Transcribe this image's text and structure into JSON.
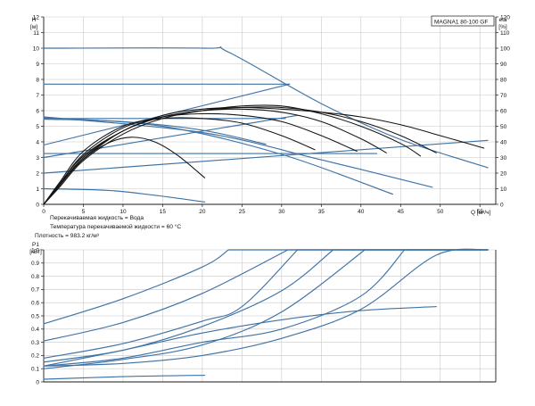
{
  "colors": {
    "blue": "#3f73a6",
    "black": "#151515",
    "grid": "#c8c8c8",
    "axis": "#1a1a1a"
  },
  "model": "MAGNA1 80-100 GF",
  "info_lines": [
    "Перекачиваемая жидкость = Вода",
    "Температура перекачиваемой жидкости = 60 °C",
    "Плотность = 983.2 кг/м³"
  ],
  "chart_data": [
    {
      "type": "line",
      "title": "MAGNA1 80-100 GF",
      "xlabel": "Q [м³/ч]",
      "ylabel": "H [м]",
      "ylabel2": "eta [%]",
      "xlim": [
        0,
        57
      ],
      "ylim": [
        0,
        12
      ],
      "y2lim": [
        0,
        120
      ],
      "xticks": [
        0,
        5,
        10,
        15,
        20,
        25,
        30,
        35,
        40,
        45,
        50,
        55
      ],
      "yticks": [
        0,
        1,
        2,
        3,
        4,
        5,
        6,
        7,
        8,
        9,
        10,
        11,
        12
      ],
      "y2ticks": [
        0,
        10,
        20,
        30,
        40,
        50,
        60,
        70,
        80,
        90,
        100,
        110,
        120
      ],
      "grid": true,
      "series": [
        {
          "color": "blue",
          "axis": "y",
          "x": [
            0,
            20.3,
            23.3,
            35,
            45,
            56
          ],
          "y": [
            10.0,
            10.0,
            9.75,
            6.45,
            4.15,
            2.35
          ]
        },
        {
          "color": "blue",
          "axis": "y",
          "x": [
            0,
            31
          ],
          "y": [
            7.7,
            7.7
          ]
        },
        {
          "color": "blue",
          "axis": "y",
          "x": [
            0,
            30.5
          ],
          "y": [
            5.5,
            5.5
          ]
        },
        {
          "color": "blue",
          "axis": "y",
          "x": [
            0,
            42
          ],
          "y": [
            3.25,
            3.25
          ]
        },
        {
          "color": "blue",
          "axis": "y",
          "x": [
            0,
            10,
            20,
            28
          ],
          "y": [
            5.45,
            5.3,
            4.75,
            3.85
          ]
        },
        {
          "color": "blue",
          "axis": "y",
          "x": [
            0,
            15,
            30,
            44
          ],
          "y": [
            5.55,
            5.0,
            3.2,
            0.65
          ]
        },
        {
          "color": "blue",
          "axis": "y",
          "x": [
            0,
            20,
            35,
            49
          ],
          "y": [
            5.6,
            4.6,
            2.85,
            1.1
          ]
        },
        {
          "color": "blue",
          "axis": "y",
          "x": [
            0,
            8,
            14,
            20.3
          ],
          "y": [
            1.0,
            0.9,
            0.58,
            0.15
          ]
        },
        {
          "color": "blue",
          "axis": "y",
          "x": [
            0,
            31
          ],
          "y": [
            3.8,
            7.7
          ]
        },
        {
          "color": "blue",
          "axis": "y",
          "x": [
            0,
            32
          ],
          "y": [
            3.0,
            5.7
          ]
        },
        {
          "color": "blue",
          "axis": "y",
          "x": [
            0,
            56
          ],
          "y": [
            2.0,
            4.1
          ]
        },
        {
          "color": "black",
          "axis": "y2",
          "x": [
            0,
            2,
            5,
            10,
            15,
            20,
            25,
            30,
            35,
            40,
            45,
            50,
            55.5
          ],
          "y": [
            0,
            13,
            31,
            47,
            57,
            61,
            62,
            61,
            59,
            56,
            51,
            44,
            36
          ]
        },
        {
          "color": "black",
          "axis": "y2",
          "x": [
            0,
            2,
            5,
            10,
            15,
            20,
            25,
            30,
            35,
            40,
            45,
            49.5
          ],
          "y": [
            0,
            12,
            30,
            47,
            56,
            60,
            62,
            62,
            59,
            53,
            44,
            33
          ]
        },
        {
          "color": "black",
          "axis": "y2",
          "x": [
            0,
            2,
            5,
            10,
            15,
            20,
            25,
            30,
            35,
            40,
            45,
            47.5
          ],
          "y": [
            0,
            11,
            28,
            45,
            55,
            60,
            63,
            63,
            58,
            50,
            39,
            31
          ]
        },
        {
          "color": "black",
          "axis": "y2",
          "x": [
            0,
            2,
            5,
            10,
            15,
            20,
            25,
            30,
            35,
            40,
            43.2
          ],
          "y": [
            0,
            12,
            29,
            47,
            56,
            60,
            61,
            59,
            53,
            42,
            33
          ]
        },
        {
          "color": "black",
          "axis": "y2",
          "x": [
            0,
            2,
            5,
            10,
            15,
            20,
            25,
            30,
            35,
            39.5
          ],
          "y": [
            0,
            13,
            32,
            49,
            56,
            58,
            57,
            53,
            44,
            34
          ]
        },
        {
          "color": "black",
          "axis": "y2",
          "x": [
            0,
            2,
            5,
            10,
            15,
            20,
            25,
            30,
            34.2
          ],
          "y": [
            0,
            14,
            34,
            50,
            55,
            55,
            52,
            44,
            35
          ]
        },
        {
          "color": "black",
          "axis": "y2",
          "x": [
            0,
            2,
            5,
            8,
            11,
            14,
            17,
            20.3
          ],
          "y": [
            0,
            13,
            29,
            39,
            43,
            40,
            31,
            17
          ]
        }
      ]
    },
    {
      "type": "line",
      "ylabel": "P1 [кВт]",
      "xlim": [
        0,
        57
      ],
      "ylim": [
        0,
        1.0
      ],
      "yticks": [
        0,
        0.1,
        0.2,
        0.3,
        0.4,
        0.5,
        0.6,
        0.7,
        0.8,
        0.9,
        1.0
      ],
      "ytick_labels": [
        "0",
        "0.1",
        "0.2",
        "0.3",
        "0.4",
        "0.5",
        "0.6",
        "0.7",
        "0.8",
        "0.9",
        "1.0"
      ],
      "grid": true,
      "series": [
        {
          "color": "blue",
          "x": [
            0,
            10,
            20,
            23.3,
            56
          ],
          "y": [
            0.44,
            0.63,
            0.87,
            1.0,
            1.0
          ]
        },
        {
          "color": "blue",
          "x": [
            0,
            10,
            20,
            30.8,
            56
          ],
          "y": [
            0.31,
            0.45,
            0.67,
            1.0,
            1.0
          ]
        },
        {
          "color": "blue",
          "x": [
            0,
            10,
            20,
            25,
            32,
            56
          ],
          "y": [
            0.18,
            0.29,
            0.46,
            0.57,
            1.0,
            1.0
          ]
        },
        {
          "color": "blue",
          "x": [
            0,
            10,
            20,
            30,
            36.5,
            56
          ],
          "y": [
            0.15,
            0.24,
            0.42,
            0.69,
            1.0,
            1.0
          ]
        },
        {
          "color": "blue",
          "x": [
            0,
            10,
            20,
            30,
            40.5,
            56
          ],
          "y": [
            0.1,
            0.17,
            0.28,
            0.53,
            1.0,
            1.0
          ]
        },
        {
          "color": "blue",
          "x": [
            0,
            10,
            20,
            30,
            40,
            45.5,
            56
          ],
          "y": [
            0.12,
            0.18,
            0.3,
            0.4,
            0.65,
            1.0,
            1.0
          ]
        },
        {
          "color": "blue",
          "x": [
            0,
            10,
            20,
            30,
            40,
            49.5,
            56
          ],
          "y": [
            0.12,
            0.14,
            0.2,
            0.33,
            0.55,
            0.96,
            1.0
          ]
        },
        {
          "color": "blue",
          "x": [
            0,
            10,
            20,
            30,
            40,
            49.5
          ],
          "y": [
            0.12,
            0.24,
            0.37,
            0.47,
            0.54,
            0.57
          ]
        },
        {
          "color": "blue",
          "x": [
            0,
            10,
            20.3
          ],
          "y": [
            0.02,
            0.04,
            0.05
          ]
        }
      ]
    }
  ]
}
